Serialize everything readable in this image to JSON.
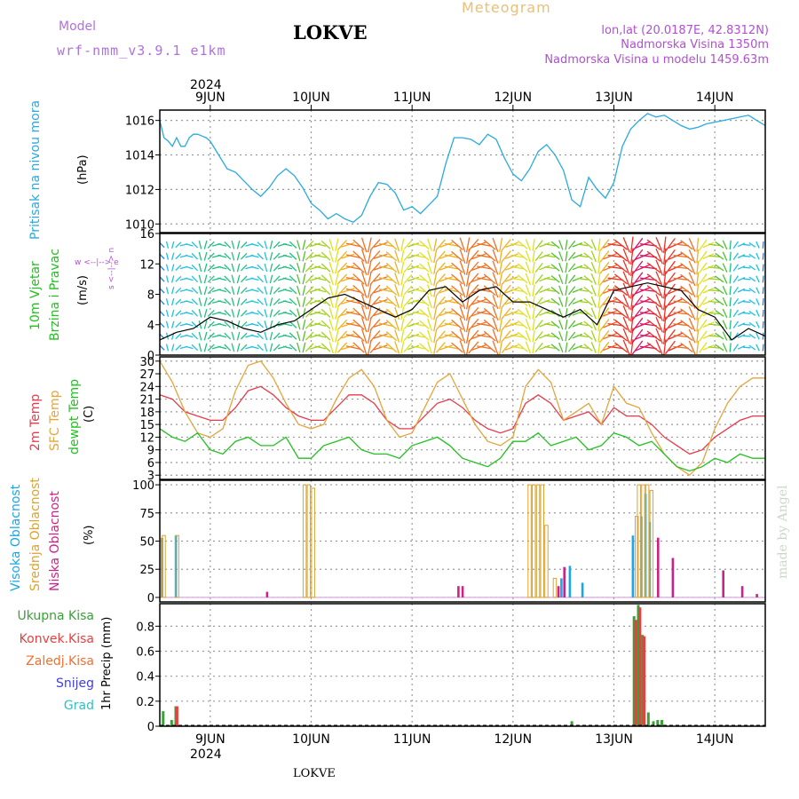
{
  "header": {
    "model_label": "Model",
    "model_name": "wrf-nmm_v3.9.1 e1km",
    "station": "LOKVE",
    "meteogram": "Meteogram",
    "lonlat": "lon,lat (20.0187E, 42.8312N)",
    "altitude": "Nadmorska Visina 1350m",
    "model_altitude": "Nadmorska Visina u modelu 1459.63m",
    "watermark": "made by Angel",
    "footer_station": "LOKVE"
  },
  "colors": {
    "pressure": "#29a9e0",
    "temp2m": "#e83a4a",
    "sfc_temp": "#e3a53c",
    "dewpoint": "#22c020",
    "cloud_high": "#1aa6e8",
    "cloud_mid": "#d9a430",
    "cloud_low": "#cc2288",
    "precip_total": "#3aa038",
    "precip_conv": "#e84040",
    "precip_frozen": "#f07030",
    "snow": "#4040e0",
    "hail": "#30c0c0",
    "model_title": "#b070e0",
    "meteogram_title": "#e8c07a",
    "purple_text": "#b050d0"
  },
  "chart_data": [
    {
      "type": "line",
      "title": "",
      "xlabel": "",
      "ylabel": "(hPa)",
      "side_label": "Pritisak na nivou mora",
      "year": "2024",
      "day_labels": [
        "9JUN",
        "10JUN",
        "11JUN",
        "12JUN",
        "13JUN",
        "14JUN"
      ],
      "x_unit": "hours since 8 JUN 12:00",
      "xlim": [
        0,
        144
      ],
      "ylim": [
        1009.5,
        1016.6
      ],
      "yticks": [
        1010,
        1012,
        1014,
        1016
      ],
      "series": [
        {
          "x": [
            0,
            1,
            2,
            3,
            4,
            5,
            6,
            7,
            8,
            9,
            10,
            11,
            12,
            14,
            16,
            18,
            20,
            22,
            24,
            26,
            28,
            30,
            32,
            34,
            36,
            38,
            40,
            42,
            44,
            46,
            48,
            50,
            52,
            54,
            56,
            58,
            60,
            62,
            64,
            66,
            68,
            70,
            72,
            74,
            76,
            78,
            80,
            82,
            84,
            86,
            88,
            90,
            92,
            94,
            96,
            98,
            100,
            102,
            104,
            106,
            108,
            110,
            112,
            114,
            116,
            118,
            120,
            122,
            124,
            126,
            128,
            130,
            132,
            134,
            136,
            138,
            140,
            142,
            144
          ],
          "values": [
            1016.0,
            1015.0,
            1014.8,
            1014.5,
            1015.0,
            1014.5,
            1014.5,
            1015.0,
            1015.2,
            1015.2,
            1015.1,
            1015.0,
            1014.8,
            1014.0,
            1013.2,
            1013.0,
            1012.5,
            1012.0,
            1011.6,
            1012.1,
            1012.8,
            1013.2,
            1012.8,
            1012.1,
            1011.2,
            1010.8,
            1010.3,
            1010.6,
            1010.3,
            1010.1,
            1010.5,
            1011.6,
            1012.4,
            1012.3,
            1011.8,
            1010.8,
            1011.0,
            1010.6,
            1011.1,
            1011.6,
            1013.5,
            1015.0,
            1015.0,
            1014.9,
            1014.6,
            1015.2,
            1014.9,
            1013.8,
            1012.9,
            1012.5,
            1013.2,
            1014.2,
            1014.6,
            1014.0,
            1013.1,
            1011.4,
            1011.0,
            1012.7,
            1012.0,
            1011.5,
            1012.4,
            1014.5,
            1015.5,
            1016.0,
            1016.4,
            1016.2,
            1016.3,
            1016.0,
            1015.7,
            1015.5,
            1015.6,
            1015.8,
            1015.9,
            1016.0,
            1016.1,
            1016.2,
            1016.3,
            1016.0,
            1015.7
          ],
          "name": ""
        }
      ]
    },
    {
      "type": "line",
      "title": "",
      "ylabel": "(m/s)",
      "side_label_1": "10m Vjetar",
      "side_label_2": "Brzina i Pravac",
      "legend_arrow": "w <--|--> e",
      "legend_arrow_v": "s <--|--> n",
      "xlim": [
        0,
        144
      ],
      "ylim": [
        0,
        16
      ],
      "yticks": [
        0,
        4,
        8,
        12,
        16
      ],
      "series": [
        {
          "name": "",
          "x": [
            0,
            4,
            8,
            12,
            16,
            20,
            24,
            28,
            32,
            36,
            40,
            44,
            48,
            52,
            56,
            60,
            64,
            68,
            72,
            76,
            80,
            84,
            88,
            92,
            96,
            100,
            104,
            108,
            112,
            116,
            120,
            124,
            128,
            132,
            136,
            140,
            144
          ],
          "values": [
            2.0,
            3.0,
            3.5,
            5.0,
            4.5,
            3.5,
            3.0,
            4.0,
            4.5,
            6.0,
            7.5,
            8.0,
            7.0,
            6.0,
            5.0,
            6.0,
            8.5,
            9.0,
            7.0,
            8.5,
            9.0,
            7.0,
            7.0,
            6.0,
            5.0,
            6.0,
            4.0,
            8.5,
            9.0,
            9.5,
            9.0,
            8.5,
            6.0,
            5.0,
            2.0,
            3.5,
            2.5
          ]
        },
        {
          "name": "",
          "x": [
            0,
            6,
            12,
            18,
            24,
            30,
            36,
            42,
            48,
            54,
            60,
            66,
            72,
            78,
            84,
            90,
            96,
            102,
            108,
            114,
            120,
            126,
            132,
            138,
            144
          ],
          "values": [
            2.0,
            3.0,
            4.5,
            4.0,
            3.5,
            4.5,
            7.0,
            9.0,
            12.5,
            11.0,
            8.0,
            10.0,
            12.0,
            12.5,
            10.0,
            8.0,
            6.0,
            7.0,
            13.0,
            14.5,
            14.0,
            12.0,
            7.0,
            3.0,
            2.0
          ]
        }
      ]
    },
    {
      "type": "line",
      "title": "",
      "ylabel": "(C)",
      "side_labels": [
        "2m Temp",
        "SFC Temp",
        "dewpt Temp"
      ],
      "xlim": [
        0,
        144
      ],
      "ylim": [
        2,
        31
      ],
      "yticks": [
        3,
        6,
        9,
        12,
        15,
        18,
        21,
        24,
        27,
        30
      ],
      "series": [
        {
          "name": "2m Temp",
          "x": [
            0,
            3,
            6,
            9,
            12,
            15,
            18,
            21,
            24,
            27,
            30,
            33,
            36,
            39,
            42,
            45,
            48,
            51,
            54,
            57,
            60,
            63,
            66,
            69,
            72,
            75,
            78,
            81,
            84,
            87,
            90,
            93,
            96,
            99,
            102,
            105,
            108,
            111,
            114,
            117,
            120,
            123,
            126,
            129,
            132,
            135,
            138,
            141,
            144
          ],
          "values": [
            22,
            21,
            18,
            17,
            16,
            16,
            19,
            23,
            24,
            22,
            19,
            17,
            16,
            16,
            19,
            22,
            22,
            20,
            16,
            14,
            14,
            17,
            20,
            21,
            19,
            16,
            14,
            13,
            14,
            20,
            22,
            20,
            16,
            17,
            18,
            15,
            19,
            17,
            17,
            15,
            12,
            10,
            8,
            9,
            12,
            14,
            16,
            17,
            17
          ]
        },
        {
          "name": "SFC Temp",
          "x": [
            0,
            3,
            6,
            9,
            12,
            15,
            18,
            21,
            24,
            27,
            30,
            33,
            36,
            39,
            42,
            45,
            48,
            51,
            54,
            57,
            60,
            63,
            66,
            69,
            72,
            75,
            78,
            81,
            84,
            87,
            90,
            93,
            96,
            99,
            102,
            105,
            108,
            111,
            114,
            117,
            120,
            123,
            126,
            129,
            132,
            135,
            138,
            141,
            144
          ],
          "values": [
            30,
            25,
            18,
            13,
            12,
            14,
            23,
            29,
            30,
            26,
            20,
            15,
            14,
            15,
            21,
            26,
            28,
            24,
            16,
            12,
            13,
            19,
            25,
            27,
            21,
            15,
            11,
            10,
            12,
            24,
            28,
            25,
            16,
            18,
            20,
            15,
            24,
            20,
            19,
            13,
            8,
            5,
            3,
            6,
            14,
            20,
            24,
            26,
            26
          ]
        },
        {
          "name": "dewpt Temp",
          "x": [
            0,
            3,
            6,
            9,
            12,
            15,
            18,
            21,
            24,
            27,
            30,
            33,
            36,
            39,
            42,
            45,
            48,
            51,
            54,
            57,
            60,
            63,
            66,
            69,
            72,
            75,
            78,
            81,
            84,
            87,
            90,
            93,
            96,
            99,
            102,
            105,
            108,
            111,
            114,
            117,
            120,
            123,
            126,
            129,
            132,
            135,
            138,
            141,
            144
          ],
          "values": [
            14,
            12,
            11,
            13,
            9,
            8,
            11,
            12,
            10,
            10,
            12,
            7,
            7,
            10,
            11,
            12,
            9,
            8,
            8,
            7,
            10,
            11,
            12,
            10,
            7,
            6,
            5,
            7,
            11,
            11,
            13,
            10,
            11,
            12,
            9,
            10,
            13,
            12,
            10,
            11,
            8,
            5,
            4,
            5,
            7,
            6,
            8,
            7,
            7
          ]
        }
      ]
    },
    {
      "type": "bar",
      "title": "",
      "ylabel": "(%)",
      "side_labels": [
        "Visoka Oblacnost",
        "Srednja Oblacnost",
        "Niska Oblacnost"
      ],
      "xlim": [
        0,
        144
      ],
      "ylim": [
        -4,
        104
      ],
      "yticks": [
        0,
        25,
        50,
        75,
        100
      ],
      "series": [
        {
          "name": "Visoka Oblacnost",
          "x": [
            0.5,
            3.8,
            95.5,
            97.5,
            100.5,
            112.5,
            114.5,
            115.5,
            116.5
          ],
          "values": [
            53,
            55,
            17,
            28,
            13,
            55,
            72,
            92,
            67
          ]
        },
        {
          "name": "Srednja Oblacnost",
          "x": [
            1,
            4.2,
            34.5,
            35.5,
            36.5,
            88,
            89,
            90,
            91,
            92,
            94,
            113.5,
            114,
            115,
            116,
            117
          ],
          "values": [
            55,
            55,
            100,
            100,
            97,
            100,
            100,
            100,
            100,
            64,
            17,
            72,
            100,
            100,
            100,
            95
          ]
        },
        {
          "name": "Niska Oblacnost",
          "x": [
            25.5,
            71,
            72,
            94.8,
            96.2,
            118.5,
            122,
            134,
            138.5,
            142
          ],
          "values": [
            5,
            10,
            10,
            10,
            27,
            53,
            35,
            24,
            10,
            3
          ]
        }
      ]
    },
    {
      "type": "bar",
      "title": "",
      "ylabel": "1hr Precip (mm)",
      "side_labels": [
        "Ukupna Kisa",
        "Konvek.Kisa",
        "Zaledj.Kisa",
        "Snijeg",
        "Grad"
      ],
      "xlim": [
        0,
        144
      ],
      "ylim": [
        0,
        0.98
      ],
      "yticks": [
        0,
        0.2,
        0.4,
        0.6,
        0.8
      ],
      "series": [
        {
          "name": "Ukupna Kisa",
          "x": [
            0.8,
            2.8,
            3.8,
            98,
            112.8,
            113.8,
            114.8,
            116.2,
            117.4,
            118.4,
            119.4
          ],
          "values": [
            0.12,
            0.05,
            0.16,
            0.04,
            0.88,
            0.97,
            0.73,
            0.11,
            0.04,
            0.05,
            0.05
          ]
        },
        {
          "name": "Konvek.Kisa",
          "x": [
            4.1,
            113.2,
            114.2,
            115.2
          ],
          "values": [
            0.16,
            0.85,
            0.95,
            0.72
          ]
        }
      ]
    }
  ]
}
